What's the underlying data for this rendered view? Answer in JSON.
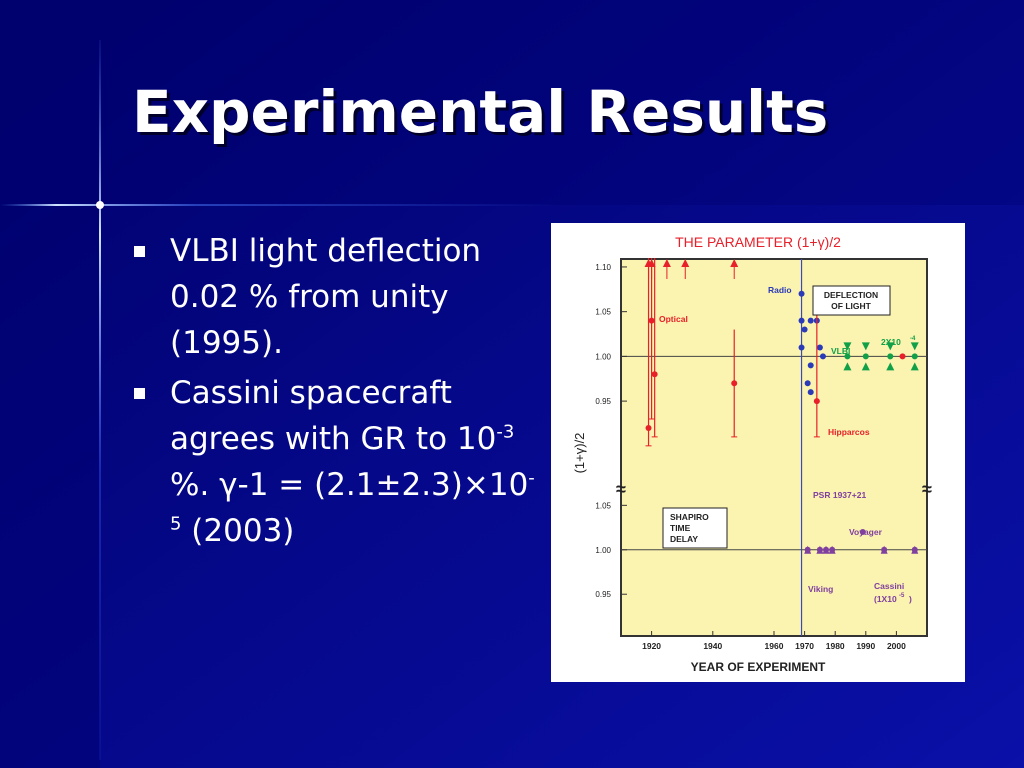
{
  "slide": {
    "title": "Experimental Results",
    "bullets": [
      {
        "parts": [
          {
            "t": "VLBI light deflection 0.02 % from unity (1995)."
          }
        ]
      },
      {
        "parts": [
          {
            "t": "Cassini spacecraft agrees with GR to 10"
          },
          {
            "t": "-3",
            "sup": true
          },
          {
            "t": " %.  γ-1 = (2.1±2.3)×10"
          },
          {
            "t": "-5",
            "sup": true
          },
          {
            "t": " (2003)"
          }
        ]
      }
    ],
    "colors": {
      "background": "#0a0a8c",
      "title": "#ffffff",
      "text": "#ffffff"
    }
  },
  "chart_data": {
    "type": "scatter",
    "title": "THE PARAMETER (1+γ)/2",
    "xlabel": "YEAR OF EXPERIMENT",
    "ylabel": "(1+γ)/2",
    "xlim": [
      1910,
      2010
    ],
    "x_ticks": [
      "1920",
      "1940",
      "1960",
      "1970",
      "1980",
      "1990",
      "2000"
    ],
    "top_panel": {
      "name": "DEFLECTION OF LIGHT",
      "ylim": [
        0.93,
        1.11
      ],
      "y_ticks": [
        "1.10",
        "1.05",
        "1.00",
        "0.95"
      ],
      "series": [
        {
          "name": "Optical",
          "color": "#e8202a",
          "points": [
            {
              "x": 1919,
              "y": 0.92,
              "ylo": 0.9,
              "yhi": 1.12
            },
            {
              "x": 1920,
              "y": 1.04,
              "ylo": 0.93,
              "yhi": 1.12
            },
            {
              "x": 1921,
              "y": 0.98,
              "ylo": 0.91,
              "yhi": 1.12
            },
            {
              "x": 1947,
              "y": 0.97,
              "ylo": 0.91,
              "yhi": 1.03
            }
          ]
        },
        {
          "name": "Radio",
          "color": "#2a3ab8",
          "points": [
            {
              "x": 1969,
              "y": 1.07
            },
            {
              "x": 1969,
              "y": 1.04
            },
            {
              "x": 1969,
              "y": 1.01
            },
            {
              "x": 1970,
              "y": 1.03
            },
            {
              "x": 1971,
              "y": 0.97
            },
            {
              "x": 1972,
              "y": 0.99
            },
            {
              "x": 1972,
              "y": 0.96
            },
            {
              "x": 1972,
              "y": 1.04
            },
            {
              "x": 1974,
              "y": 1.04
            },
            {
              "x": 1975,
              "y": 1.01
            },
            {
              "x": 1976,
              "y": 1.0
            }
          ]
        },
        {
          "name": "Radio (red)",
          "color": "#e8202a",
          "points": [
            {
              "x": 1974,
              "y": 0.95,
              "ylo": 0.91,
              "yhi": 1.06
            }
          ]
        },
        {
          "name": "VLBI",
          "color": "#10a048",
          "points": [
            {
              "x": 1984,
              "y": 1.0
            },
            {
              "x": 1990,
              "y": 1.0
            },
            {
              "x": 1998,
              "y": 1.0
            },
            {
              "x": 2006,
              "y": 1.0
            }
          ]
        },
        {
          "name": "Hipparcos",
          "color": "#e8202a",
          "points": [
            {
              "x": 2002,
              "y": 1.0
            }
          ]
        }
      ],
      "annotations": [
        "Optical",
        "Radio",
        "VLBI",
        "2X10",
        "-4",
        "Hipparcos",
        "DEFLECTION",
        "OF LIGHT"
      ]
    },
    "bottom_panel": {
      "name": "SHAPIRO TIME DELAY",
      "ylim": [
        0.93,
        1.11
      ],
      "y_ticks": [
        "1.05",
        "1.00",
        "0.95"
      ],
      "series": [
        {
          "name": "Shapiro time delay",
          "color": "#8040a0",
          "points": [
            {
              "x": 1971,
              "y": 1.0
            },
            {
              "x": 1975,
              "y": 1.0
            },
            {
              "x": 1977,
              "y": 1.0
            },
            {
              "x": 1979,
              "y": 1.0
            },
            {
              "x": 1989,
              "y": 1.02
            },
            {
              "x": 1996,
              "y": 1.0
            },
            {
              "x": 2006,
              "y": 1.0
            }
          ]
        }
      ],
      "annotations": [
        "PSR 1937+21",
        "Voyager",
        "Viking",
        "Cassini",
        "(1X10",
        "-5",
        ")",
        "SHAPIRO",
        "TIME",
        "DELAY"
      ]
    },
    "colors": {
      "plot_bg": "#fbf3b0",
      "title": "#e8202a",
      "axis": "#222222"
    }
  }
}
